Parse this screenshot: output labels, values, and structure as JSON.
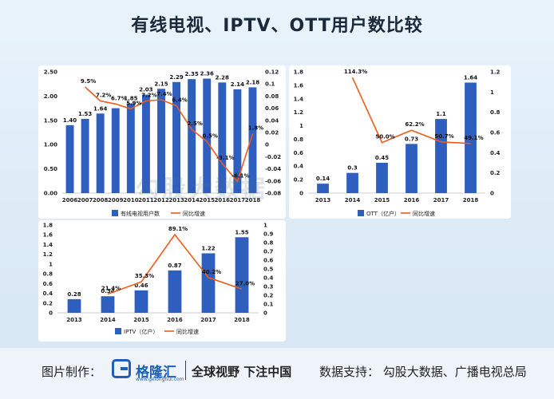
{
  "title": "有线电视、IPTV、OTT用户数比较",
  "watermark": "勾股大数据",
  "footer": {
    "made_label": "图片制作：",
    "logo_text": "格隆汇",
    "logo_url": "www.gelonghui.com",
    "slogan": "全球视野 下注中国",
    "source": "数据支持：  勾股大数据、广播电视总局"
  },
  "colors": {
    "bar": "#2e5fbf",
    "line": "#f05a1a"
  },
  "chart_data": [
    {
      "type": "bar",
      "categories": [
        "2006",
        "2007",
        "2008",
        "2009",
        "2010",
        "2011",
        "2012",
        "2013",
        "2014",
        "2015",
        "2016",
        "2017",
        "2018"
      ],
      "series": [
        {
          "name": "有线电视用户数",
          "values": [
            1.4,
            1.53,
            1.64,
            1.75,
            1.85,
            2.03,
            2.15,
            2.29,
            2.35,
            2.36,
            2.28,
            2.14,
            2.18
          ],
          "labels": [
            "1.40",
            "1.53",
            "1.64",
            "",
            "1.85",
            "2.03",
            "2.15",
            "2.29",
            "2.35",
            "2.36",
            "2.28",
            "2.14",
            "2.18"
          ]
        },
        {
          "name": "同比增速",
          "type": "line",
          "axis": "right",
          "values": [
            null,
            0.095,
            0.072,
            0.067,
            0.059,
            0.072,
            0.074,
            0.064,
            0.025,
            0.005,
            -0.031,
            -0.061,
            0.018
          ],
          "labels": [
            "",
            "9.5%",
            "7.2%",
            "6.7%",
            "5.9%",
            "7.2%",
            "7.4%",
            "6.4%",
            "2.5%",
            "0.5%",
            "-3.1%",
            "-6.1%",
            "1.8%"
          ]
        }
      ],
      "ylim": [
        0,
        2.5
      ],
      "yticks": [
        "0.00",
        "0.50",
        "1.00",
        "1.50",
        "2.00",
        "2.50"
      ],
      "y2lim": [
        -0.08,
        0.12
      ],
      "y2ticks": [
        "-0.08",
        "-0.06",
        "-0.04",
        "-0.02",
        "0",
        "0.02",
        "0.04",
        "0.06",
        "0.08",
        "0.1",
        "0.12"
      ]
    },
    {
      "type": "bar",
      "categories": [
        "2013",
        "2014",
        "2015",
        "2016",
        "2017",
        "2018"
      ],
      "series": [
        {
          "name": "OTT（亿户）",
          "values": [
            0.14,
            0.3,
            0.45,
            0.73,
            1.1,
            1.64
          ],
          "labels": [
            "0.14",
            "0.3",
            "0.45",
            "0.73",
            "1.1",
            "1.64"
          ]
        },
        {
          "name": "同比增速",
          "type": "line",
          "axis": "right",
          "values": [
            null,
            1.143,
            0.5,
            0.622,
            0.507,
            0.491
          ],
          "labels": [
            "",
            "114.3%",
            "50.0%",
            "62.2%",
            "50.7%",
            "49.1%"
          ]
        }
      ],
      "ylim": [
        0,
        1.8
      ],
      "yticks": [
        "0",
        "0.2",
        "0.4",
        "0.6",
        "0.8",
        "1",
        "1.2",
        "1.4",
        "1.6",
        "1.8"
      ],
      "y2lim": [
        0,
        1.2
      ],
      "y2ticks": [
        "0",
        "0.2",
        "0.4",
        "0.6",
        "0.8",
        "1",
        "1.2"
      ]
    },
    {
      "type": "bar",
      "categories": [
        "2013",
        "2014",
        "2015",
        "2016",
        "2017",
        "2018"
      ],
      "series": [
        {
          "name": "IPTV（亿户）",
          "values": [
            0.28,
            0.34,
            0.46,
            0.87,
            1.22,
            1.55
          ],
          "labels": [
            "0.28",
            "0.34",
            "0.46",
            "0.87",
            "1.22",
            "1.55"
          ]
        },
        {
          "name": "同比增速",
          "type": "line",
          "axis": "right",
          "values": [
            null,
            0.214,
            0.353,
            0.891,
            0.402,
            0.27
          ],
          "labels": [
            "",
            "21.4%",
            "35.3%",
            "89.1%",
            "40.2%",
            "27.0%"
          ]
        }
      ],
      "ylim": [
        0,
        1.8
      ],
      "yticks": [
        "0",
        "0.2",
        "0.4",
        "0.6",
        "0.8",
        "1",
        "1.2",
        "1.4",
        "1.6",
        "1.8"
      ],
      "y2lim": [
        0,
        1.0
      ],
      "y2ticks": [
        "0",
        "0.1",
        "0.2",
        "0.3",
        "0.4",
        "0.5",
        "0.6",
        "0.7",
        "0.8",
        "0.9",
        "1"
      ]
    }
  ]
}
